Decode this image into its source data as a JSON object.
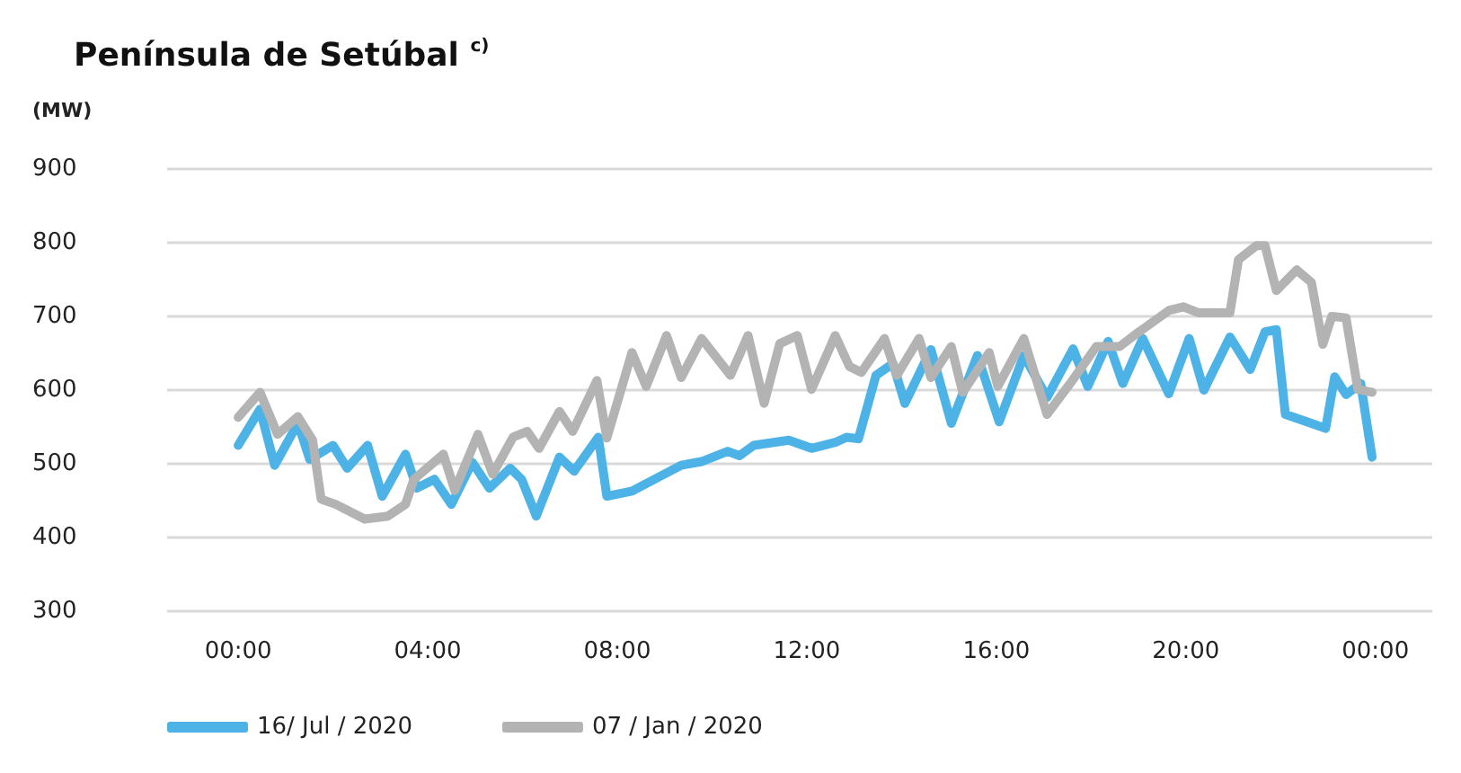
{
  "chart_data": {
    "type": "line",
    "title": "Península de Setúbal $^{c)}$",
    "ylabel": "(MW)",
    "xlim": [
      -1.5,
      25.2
    ],
    "xticks": [
      {
        "value": 0,
        "label": "00:00"
      },
      {
        "value": 4,
        "label": "04:00"
      },
      {
        "value": 8,
        "label": "08:00"
      },
      {
        "value": 12,
        "label": "12:00"
      },
      {
        "value": 16,
        "label": "16:00"
      },
      {
        "value": 20,
        "label": "20:00"
      },
      {
        "value": 24,
        "label": "00:00"
      }
    ],
    "ylim": [
      300,
      900
    ],
    "yticks": [
      300,
      400,
      500,
      600,
      700,
      800,
      900
    ],
    "grid": "y",
    "legend": "bottom left",
    "marker": "none",
    "line_style": "solid",
    "series": [
      {
        "name": "16/ Jul / 2020",
        "color": "#4db3e6",
        "x": [
          0,
          0.46,
          0.77,
          1.26,
          1.51,
          2.0,
          2.3,
          2.73,
          3.04,
          3.53,
          3.77,
          4.14,
          4.5,
          4.94,
          5.3,
          5.74,
          5.98,
          6.29,
          6.78,
          7.09,
          7.6,
          7.78,
          8.31,
          9.35,
          9.78,
          10.33,
          10.58,
          10.88,
          11.62,
          12.1,
          12.6,
          12.84,
          13.09,
          13.46,
          13.82,
          14.07,
          14.62,
          15.05,
          15.6,
          16.06,
          16.58,
          17.07,
          17.62,
          17.93,
          18.36,
          18.67,
          19.09,
          19.64,
          20.07,
          20.38,
          20.93,
          21.36,
          21.67,
          21.91,
          22.1,
          22.65,
          22.95,
          23.14,
          23.38,
          23.69,
          23.93
        ],
        "values": [
          525,
          574,
          498,
          555,
          506,
          525,
          494,
          525,
          456,
          513,
          467,
          479,
          445,
          502,
          467,
          494,
          479,
          429,
          509,
          490,
          536,
          456,
          463,
          498,
          503,
          517,
          511,
          525,
          532,
          521,
          529,
          536,
          534,
          620,
          636,
          582,
          655,
          555,
          647,
          557,
          647,
          590,
          656,
          605,
          666,
          609,
          670,
          595,
          670,
          600,
          672,
          628,
          679,
          682,
          567,
          555,
          548,
          618,
          594,
          609,
          509
        ]
      },
      {
        "name": "07 / Jan / 2020",
        "color": "#b3b3b3",
        "x": [
          0,
          0.46,
          0.83,
          1.26,
          1.57,
          1.75,
          2.06,
          2.67,
          3.16,
          3.53,
          3.71,
          4.33,
          4.57,
          5.06,
          5.37,
          5.8,
          6.1,
          6.35,
          6.78,
          7.06,
          7.57,
          7.78,
          8.31,
          8.61,
          9.04,
          9.35,
          9.78,
          10.39,
          10.76,
          11.1,
          11.43,
          11.8,
          12.1,
          12.6,
          12.9,
          13.15,
          13.64,
          13.9,
          14.37,
          14.62,
          15.05,
          15.29,
          15.85,
          16.03,
          16.58,
          17.07,
          17.56,
          18.11,
          18.6,
          18.97,
          19.64,
          19.95,
          20.26,
          20.93,
          21.11,
          21.49,
          21.67,
          21.91,
          22.34,
          22.65,
          22.89,
          23.08,
          23.38,
          23.63,
          23.93
        ],
        "values": [
          563,
          597,
          540,
          564,
          532,
          452,
          445,
          425,
          429,
          445,
          479,
          513,
          464,
          540,
          486,
          536,
          544,
          521,
          571,
          544,
          613,
          535,
          651,
          605,
          674,
          617,
          670,
          620,
          674,
          582,
          663,
          674,
          601,
          674,
          632,
          624,
          670,
          620,
          670,
          617,
          659,
          597,
          651,
          605,
          670,
          567,
          609,
          659,
          659,
          677,
          708,
          713,
          705,
          705,
          777,
          796,
          796,
          735,
          763,
          746,
          662,
          700,
          698,
          601,
          597
        ]
      }
    ]
  }
}
